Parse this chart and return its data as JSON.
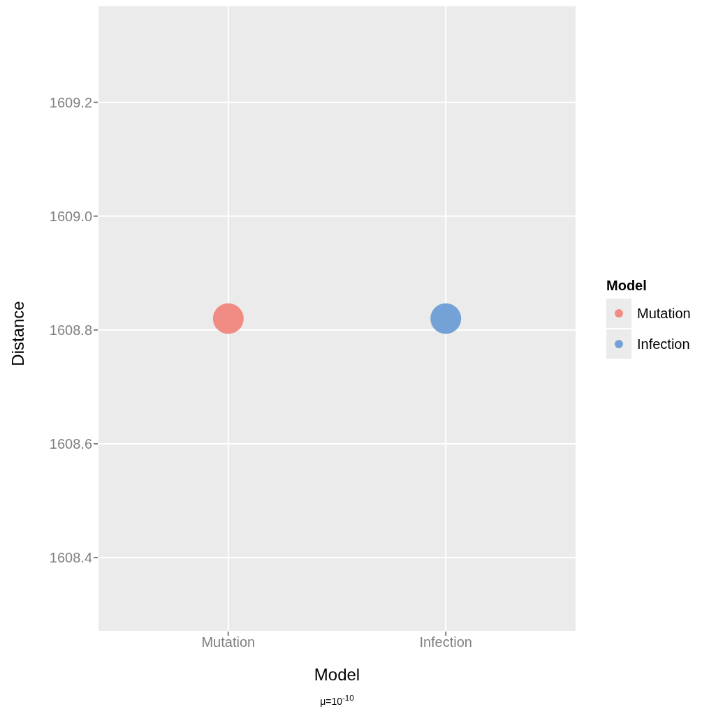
{
  "chart_data": {
    "type": "scatter",
    "xlabel": "Model",
    "ylabel": "Distance",
    "legend_title": "Model",
    "categories": [
      "Mutation",
      "Infection"
    ],
    "series": [
      {
        "name": "Mutation",
        "color": "#f08c84",
        "values": [
          1608.82,
          null
        ]
      },
      {
        "name": "Infection",
        "color": "#74a2d6",
        "values": [
          null,
          1608.82
        ]
      }
    ],
    "ylim": [
      1608.27,
      1609.37
    ],
    "yticks": [
      1608.4,
      1608.6,
      1608.8,
      {
        "value": 1609,
        "label": "1609.0"
      },
      1609.2
    ],
    "grid": true,
    "legend": "right",
    "marker": "circle",
    "annotations": [
      "μ=10$^{-10}$"
    ]
  }
}
